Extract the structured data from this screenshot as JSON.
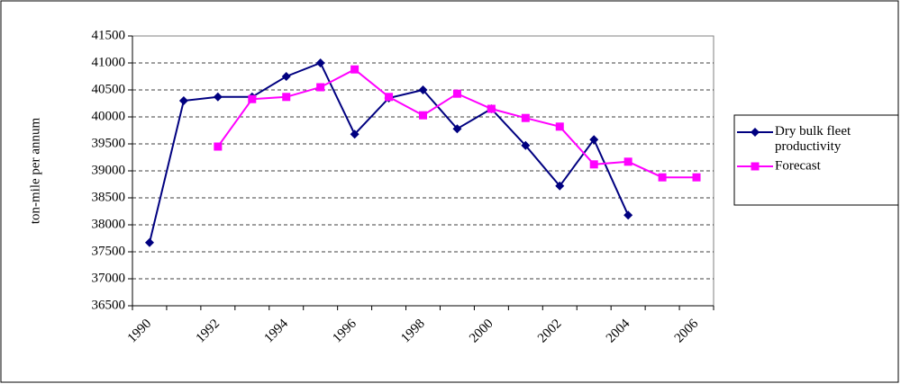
{
  "chart_data": {
    "type": "line",
    "y_label": "ton-mile per annum",
    "categories": [
      "1990",
      null,
      "1992",
      null,
      "1994",
      null,
      "1996",
      null,
      "1998",
      null,
      "2000",
      null,
      "2002",
      null,
      "2004",
      null,
      "2006"
    ],
    "series": [
      {
        "name": "Dry bulk fleet productivity",
        "color": "#000080",
        "marker": "diamond",
        "values": [
          37670,
          40300,
          40370,
          40370,
          40750,
          41000,
          39680,
          40350,
          40500,
          39780,
          40150,
          39470,
          38720,
          39580,
          38180,
          null,
          null
        ]
      },
      {
        "name": "Forecast",
        "color": "#ff00ff",
        "marker": "square",
        "values": [
          null,
          null,
          39450,
          40330,
          40370,
          40550,
          40880,
          40370,
          40030,
          40430,
          40150,
          39980,
          39820,
          39120,
          39170,
          38880,
          38880
        ]
      }
    ],
    "ylim": [
      36500,
      41500
    ],
    "yticks": [
      36500,
      37000,
      37500,
      38000,
      38500,
      39000,
      39500,
      40000,
      40500,
      41000,
      41500
    ],
    "grid": true,
    "legend": "right"
  }
}
